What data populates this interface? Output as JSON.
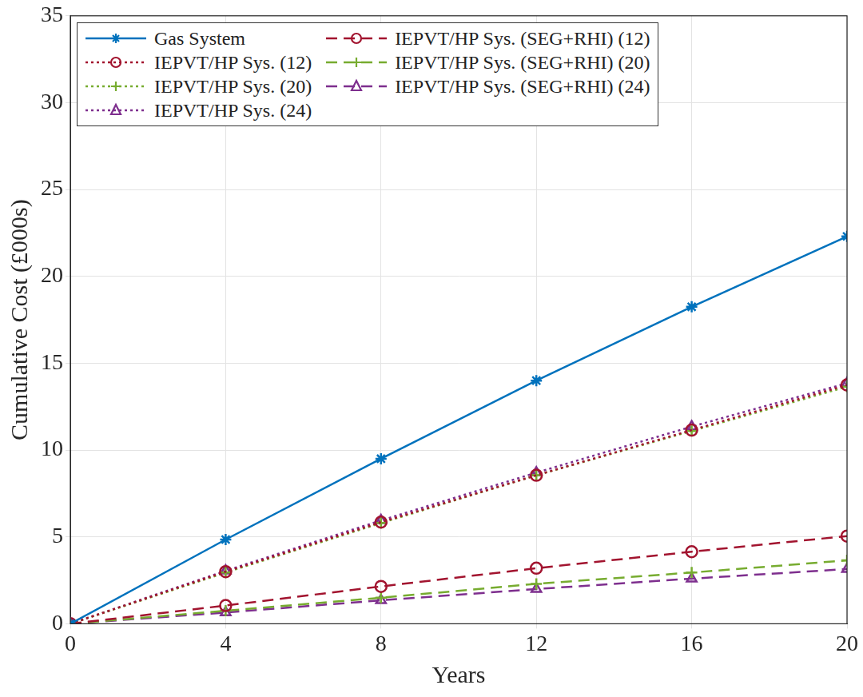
{
  "chart_data": {
    "type": "line",
    "x_label": "Years",
    "y_label": "Cumulative Cost (£000s)",
    "x": [
      0,
      4,
      8,
      12,
      16,
      20
    ],
    "xlim": [
      0,
      20
    ],
    "xticks": [
      0,
      4,
      8,
      12,
      16,
      20
    ],
    "ylim": [
      0,
      35
    ],
    "yticks": [
      0,
      5,
      10,
      15,
      20,
      25,
      30,
      35
    ],
    "grid": true,
    "legend": "top-left",
    "series": [
      {
        "name": "Gas System",
        "color": "#0072BD",
        "marker": "asterisk",
        "line_style": "solid",
        "values": [
          0,
          4.85,
          9.5,
          14.0,
          18.25,
          22.3
        ]
      },
      {
        "name": "IEPVT/HP Sys. (12)",
        "color": "#A2142F",
        "marker": "circle",
        "line_style": "dotted",
        "values": [
          0,
          3.0,
          5.85,
          8.55,
          11.15,
          13.75
        ]
      },
      {
        "name": "IEPVT/HP Sys. (20)",
        "color": "#77AC30",
        "marker": "plus",
        "line_style": "dotted",
        "values": [
          0,
          2.95,
          5.8,
          8.55,
          11.1,
          13.65
        ]
      },
      {
        "name": "IEPVT/HP Sys. (24)",
        "color": "#7E2F8E",
        "marker": "triangle",
        "line_style": "dotted",
        "values": [
          0,
          3.05,
          5.95,
          8.7,
          11.35,
          13.85
        ]
      },
      {
        "name": "IEPVT/HP Sys. (SEG+RHI) (12)",
        "color": "#A2142F",
        "marker": "circle",
        "line_style": "dashed",
        "values": [
          0,
          1.05,
          2.15,
          3.2,
          4.15,
          5.05
        ]
      },
      {
        "name": "IEPVT/HP Sys. (SEG+RHI) (20)",
        "color": "#77AC30",
        "marker": "plus",
        "line_style": "dashed",
        "values": [
          0,
          0.75,
          1.5,
          2.3,
          2.95,
          3.65
        ]
      },
      {
        "name": "IEPVT/HP Sys. (SEG+RHI) (24)",
        "color": "#7E2F8E",
        "marker": "triangle",
        "line_style": "dashed",
        "values": [
          0,
          0.65,
          1.35,
          2.0,
          2.6,
          3.15
        ]
      }
    ]
  }
}
